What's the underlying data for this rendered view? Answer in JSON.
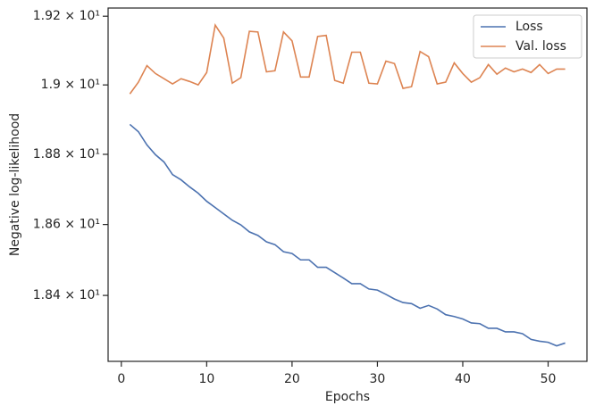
{
  "chart_data": {
    "type": "line",
    "x_label": "Epochs",
    "y_label": "Negative log-likelihood",
    "x": [
      1,
      2,
      3,
      4,
      5,
      6,
      7,
      8,
      9,
      10,
      11,
      12,
      13,
      14,
      15,
      16,
      17,
      18,
      19,
      20,
      21,
      22,
      23,
      24,
      25,
      26,
      27,
      28,
      29,
      30,
      31,
      32,
      33,
      34,
      35,
      36,
      37,
      38,
      39,
      40,
      41,
      42,
      43,
      44,
      45,
      46,
      47,
      48,
      49,
      50,
      51,
      52
    ],
    "series": [
      {
        "name": "Loss",
        "color": "#4c72b0",
        "values": [
          18.886,
          18.865,
          18.827,
          18.799,
          18.778,
          18.742,
          18.727,
          18.707,
          18.689,
          18.666,
          18.648,
          18.63,
          18.612,
          18.599,
          18.579,
          18.569,
          18.551,
          18.543,
          18.523,
          18.518,
          18.5,
          18.5,
          18.479,
          18.479,
          18.464,
          18.449,
          18.433,
          18.433,
          18.418,
          18.415,
          18.403,
          18.39,
          18.38,
          18.377,
          18.364,
          18.372,
          18.362,
          18.346,
          18.341,
          18.334,
          18.323,
          18.321,
          18.308,
          18.308,
          18.298,
          18.298,
          18.293,
          18.277,
          18.272,
          18.269,
          18.259,
          18.267
        ]
      },
      {
        "name": "Val. loss",
        "color": "#dd8452",
        "values": [
          18.974,
          19.008,
          19.056,
          19.033,
          19.018,
          19.003,
          19.018,
          19.01,
          19.0,
          19.036,
          19.174,
          19.136,
          19.005,
          19.021,
          19.156,
          19.154,
          19.038,
          19.041,
          19.154,
          19.128,
          19.023,
          19.023,
          19.141,
          19.144,
          19.013,
          19.005,
          19.095,
          19.095,
          19.005,
          19.003,
          19.069,
          19.062,
          18.99,
          18.995,
          19.097,
          19.082,
          19.003,
          19.008,
          19.064,
          19.033,
          19.008,
          19.021,
          19.059,
          19.031,
          19.049,
          19.038,
          19.046,
          19.036,
          19.059,
          19.033,
          19.046,
          19.046
        ]
      }
    ],
    "xlim": [
      -1.55,
      54.55
    ],
    "xticks": [
      0,
      10,
      20,
      30,
      40,
      50
    ],
    "ylim": [
      18.216,
      19.224
    ],
    "y_scale": "log",
    "yticks": [
      {
        "value": 18.4,
        "label": "1.84 × 10¹"
      },
      {
        "value": 18.6,
        "label": "1.86 × 10¹"
      },
      {
        "value": 18.8,
        "label": "1.88 × 10¹"
      },
      {
        "value": 19.0,
        "label": "1.9 × 10¹"
      },
      {
        "value": 19.2,
        "label": "1.92 × 10¹"
      }
    ],
    "grid": false,
    "legend": "upper right"
  }
}
